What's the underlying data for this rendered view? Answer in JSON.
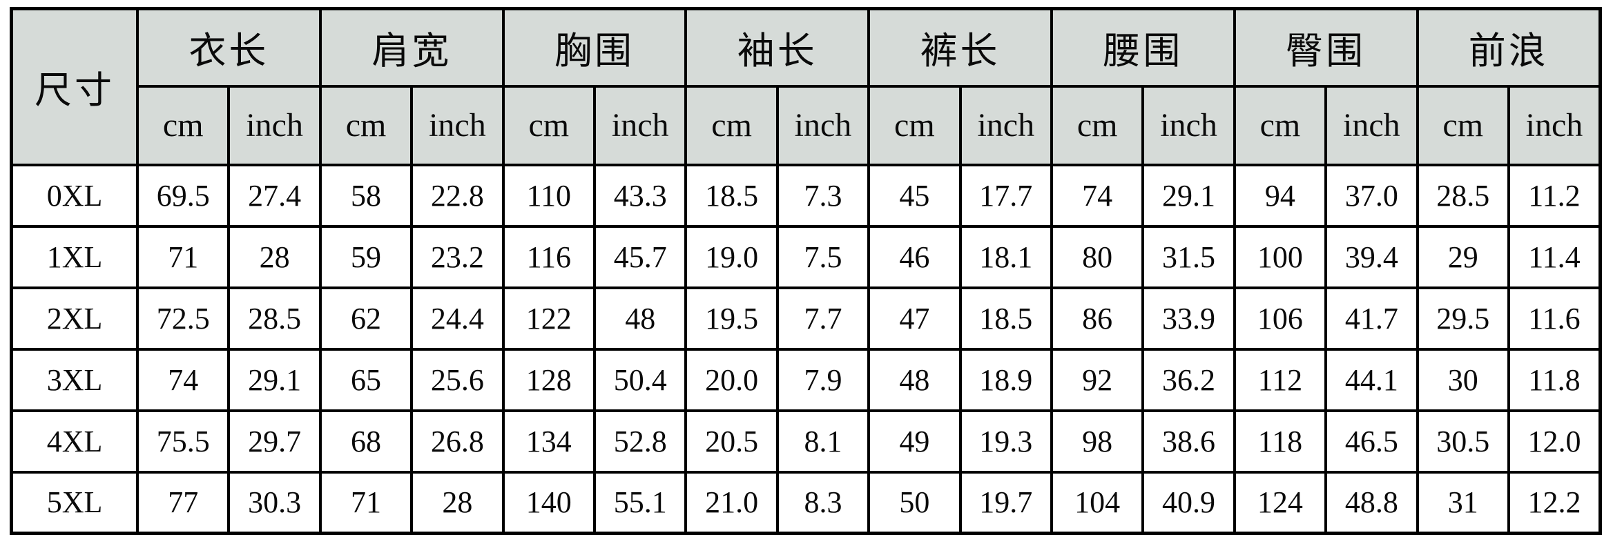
{
  "table": {
    "size_label": "尺寸",
    "units": {
      "cm": "cm",
      "inch": "inch"
    },
    "groups": [
      {
        "label": "衣长"
      },
      {
        "label": "肩宽"
      },
      {
        "label": "胸围"
      },
      {
        "label": "袖长"
      },
      {
        "label": "裤长"
      },
      {
        "label": "腰围"
      },
      {
        "label": "臀围"
      },
      {
        "label": "前浪"
      }
    ],
    "rows": [
      {
        "size": "0XL",
        "values": [
          "69.5",
          "27.4",
          "58",
          "22.8",
          "110",
          "43.3",
          "18.5",
          "7.3",
          "45",
          "17.7",
          "74",
          "29.1",
          "94",
          "37.0",
          "28.5",
          "11.2"
        ]
      },
      {
        "size": "1XL",
        "values": [
          "71",
          "28",
          "59",
          "23.2",
          "116",
          "45.7",
          "19.0",
          "7.5",
          "46",
          "18.1",
          "80",
          "31.5",
          "100",
          "39.4",
          "29",
          "11.4"
        ]
      },
      {
        "size": "2XL",
        "values": [
          "72.5",
          "28.5",
          "62",
          "24.4",
          "122",
          "48",
          "19.5",
          "7.7",
          "47",
          "18.5",
          "86",
          "33.9",
          "106",
          "41.7",
          "29.5",
          "11.6"
        ]
      },
      {
        "size": "3XL",
        "values": [
          "74",
          "29.1",
          "65",
          "25.6",
          "128",
          "50.4",
          "20.0",
          "7.9",
          "48",
          "18.9",
          "92",
          "36.2",
          "112",
          "44.1",
          "30",
          "11.8"
        ]
      },
      {
        "size": "4XL",
        "values": [
          "75.5",
          "29.7",
          "68",
          "26.8",
          "134",
          "52.8",
          "20.5",
          "8.1",
          "49",
          "19.3",
          "98",
          "38.6",
          "118",
          "46.5",
          "30.5",
          "12.0"
        ]
      },
      {
        "size": "5XL",
        "values": [
          "77",
          "30.3",
          "71",
          "28",
          "140",
          "55.1",
          "21.0",
          "8.3",
          "50",
          "19.7",
          "104",
          "40.9",
          "124",
          "48.8",
          "31",
          "12.2"
        ]
      }
    ],
    "colors": {
      "header_bg": "#d6dbd8",
      "row_bg": "#ffffff",
      "border": "#000000"
    }
  }
}
